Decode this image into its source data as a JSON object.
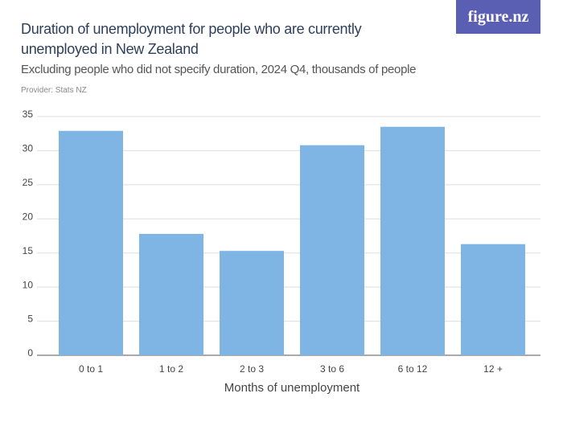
{
  "chart_data": {
    "type": "bar",
    "title": "Duration of unemployment for people who are currently unemployed in New Zealand",
    "subtitle": "Excluding people who did not specify duration, 2024 Q4, thousands of people",
    "provider": "Provider: Stats NZ",
    "logo": "figure.nz",
    "x_label": "Months of unemployment",
    "categories": [
      "0 to 1",
      "1 to 2",
      "2 to 3",
      "3 to 6",
      "6 to 12",
      "12 +"
    ],
    "values": [
      32.9,
      17.8,
      15.3,
      30.8,
      33.5,
      16.3
    ],
    "color": "#7fb5e4",
    "ylim": [
      0,
      35
    ],
    "yticks": [
      0,
      5,
      10,
      15,
      20,
      25,
      30,
      35
    ],
    "grid": true
  }
}
